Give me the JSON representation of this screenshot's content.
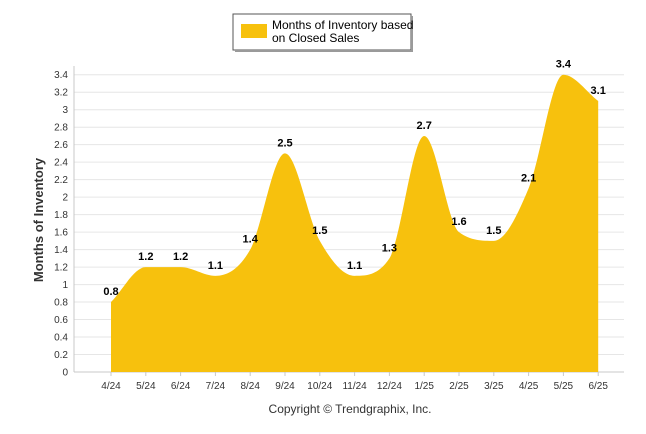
{
  "chart_data": {
    "type": "area",
    "ylabel": "Months of Inventory",
    "xlabel": "",
    "ylim": [
      0,
      3.5
    ],
    "y_ticks": [
      "0",
      "0.2",
      "0.4",
      "0.6",
      "0.8",
      "1",
      "1.2",
      "1.4",
      "1.6",
      "1.8",
      "2",
      "2.2",
      "2.4",
      "2.6",
      "2.8",
      "3",
      "3.2",
      "3.4"
    ],
    "grid": true,
    "legend": "top-center",
    "categories": [
      "4/24",
      "5/24",
      "6/24",
      "7/24",
      "8/24",
      "9/24",
      "10/24",
      "11/24",
      "12/24",
      "1/25",
      "2/25",
      "3/25",
      "4/25",
      "5/25",
      "6/25"
    ],
    "series": [
      {
        "name": "Months of Inventory based on Closed Sales",
        "color": "#f7c10d",
        "values": [
          0.8,
          1.2,
          1.2,
          1.1,
          1.4,
          2.5,
          1.5,
          1.1,
          1.3,
          2.7,
          1.6,
          1.5,
          2.1,
          3.4,
          3.1
        ],
        "labels": [
          "0.8",
          "1.2",
          "1.2",
          "1.1",
          "1.4",
          "2.5",
          "1.5",
          "1.1",
          "1.3",
          "2.7",
          "1.6",
          "1.5",
          "2.1",
          "3.4",
          "3.1"
        ]
      }
    ]
  },
  "legend": {
    "line1": "Months of Inventory based",
    "line2": "on Closed Sales"
  },
  "footer": {
    "copyright": "Copyright © Trendgraphix, Inc."
  },
  "colors": {
    "fill": "#f7c10d",
    "grid": "#e6e6e6",
    "axis": "#c8c8c8"
  }
}
